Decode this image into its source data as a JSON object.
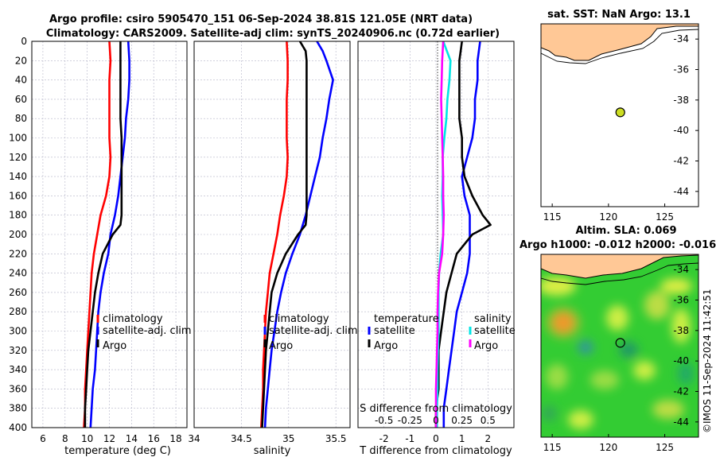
{
  "title": {
    "line1": "Argo profile: csiro 5905470_151 06-Sep-2024 38.81S 121.05E (NRT data)",
    "line2": "Climatology: CARS2009. Satellite-adj clim: synTS_20240906.nc (0.72d earlier)"
  },
  "colors": {
    "climatology": "#ff0000",
    "satellite": "#0000ff",
    "argo": "#000000",
    "sat_salinity": "#00e5e5",
    "argo_salinity": "#ff00ff",
    "land": "#ffc896",
    "sea": "#33cc33"
  },
  "chart_data": [
    {
      "type": "line",
      "name": "temperature-profile",
      "xlabel": "temperature (deg C)",
      "xlim": [
        5,
        19
      ],
      "xticks": [
        "6",
        "8",
        "10",
        "12",
        "14",
        "16",
        "18"
      ],
      "xtick_values": [
        6,
        8,
        10,
        12,
        14,
        16,
        18
      ],
      "ylim": [
        0,
        400
      ],
      "yticks": [
        "0",
        "20",
        "40",
        "60",
        "80",
        "100",
        "120",
        "140",
        "160",
        "180",
        "200",
        "220",
        "240",
        "260",
        "280",
        "300",
        "320",
        "340",
        "360",
        "380",
        "400"
      ],
      "legend": [
        "climatology",
        "satellite-adj. clim",
        "Argo"
      ],
      "series": [
        {
          "name": "climatology",
          "color_key": "climatology",
          "depth": [
            0,
            20,
            40,
            60,
            80,
            100,
            120,
            140,
            160,
            180,
            200,
            220,
            240,
            260,
            280,
            300,
            320,
            340,
            360,
            380,
            400
          ],
          "values": [
            12.0,
            12.1,
            12.0,
            12.0,
            12.0,
            12.0,
            12.1,
            12.0,
            11.7,
            11.2,
            10.9,
            10.6,
            10.4,
            10.3,
            10.2,
            10.1,
            10.0,
            9.9,
            9.8,
            9.8,
            9.7
          ]
        },
        {
          "name": "satellite-adj. clim",
          "color_key": "satellite",
          "depth": [
            0,
            20,
            40,
            60,
            80,
            100,
            120,
            140,
            160,
            180,
            200,
            220,
            240,
            260,
            280,
            300,
            320,
            340,
            360,
            380,
            400
          ],
          "values": [
            13.7,
            13.8,
            13.8,
            13.7,
            13.5,
            13.4,
            13.2,
            13.0,
            12.8,
            12.5,
            12.1,
            11.9,
            11.5,
            11.2,
            11.0,
            10.9,
            10.8,
            10.7,
            10.5,
            10.4,
            10.3
          ]
        },
        {
          "name": "Argo",
          "color_key": "argo",
          "depth": [
            0,
            20,
            40,
            60,
            80,
            100,
            120,
            140,
            160,
            180,
            190,
            200,
            220,
            240,
            260,
            280,
            300,
            320,
            340,
            360,
            380,
            400
          ],
          "values": [
            13.0,
            13.0,
            13.0,
            13.0,
            13.0,
            13.1,
            13.1,
            13.1,
            13.1,
            13.1,
            13.0,
            12.3,
            11.4,
            11.0,
            10.7,
            10.5,
            10.3,
            10.1,
            10.0,
            9.9,
            9.8,
            9.8
          ]
        }
      ]
    },
    {
      "type": "line",
      "name": "salinity-profile",
      "xlabel": "salinity",
      "xlim": [
        34,
        35.65
      ],
      "xticks": [
        "34",
        "34.5",
        "35",
        "35.5"
      ],
      "xtick_values": [
        34,
        34.5,
        35,
        35.5
      ],
      "ylim": [
        0,
        400
      ],
      "legend": [
        "climatology",
        "satellite-adj. clim",
        "Argo"
      ],
      "series": [
        {
          "name": "climatology",
          "color_key": "climatology",
          "depth": [
            0,
            20,
            40,
            60,
            80,
            100,
            120,
            140,
            160,
            180,
            200,
            220,
            240,
            260,
            280,
            300,
            320,
            340,
            360,
            380,
            400
          ],
          "values": [
            34.98,
            34.99,
            34.99,
            34.98,
            34.98,
            34.98,
            34.99,
            34.98,
            34.95,
            34.91,
            34.88,
            34.84,
            34.8,
            34.78,
            34.76,
            34.75,
            34.74,
            34.73,
            34.73,
            34.72,
            34.71
          ]
        },
        {
          "name": "satellite-adj. clim",
          "color_key": "satellite",
          "depth": [
            0,
            10,
            20,
            40,
            60,
            80,
            100,
            120,
            140,
            160,
            180,
            200,
            220,
            240,
            260,
            280,
            300,
            320,
            340,
            360,
            380,
            400
          ],
          "values": [
            35.3,
            35.36,
            35.4,
            35.47,
            35.43,
            35.4,
            35.36,
            35.33,
            35.28,
            35.23,
            35.18,
            35.12,
            35.04,
            34.97,
            34.92,
            34.88,
            34.85,
            34.82,
            34.8,
            34.78,
            34.76,
            34.75
          ]
        },
        {
          "name": "Argo",
          "color_key": "argo",
          "depth": [
            0,
            10,
            20,
            40,
            60,
            80,
            100,
            120,
            140,
            160,
            180,
            190,
            200,
            220,
            240,
            260,
            280,
            300,
            320,
            340,
            360,
            380,
            400
          ],
          "values": [
            35.12,
            35.18,
            35.19,
            35.19,
            35.19,
            35.19,
            35.19,
            35.19,
            35.19,
            35.19,
            35.19,
            35.18,
            35.1,
            34.97,
            34.88,
            34.82,
            34.8,
            34.78,
            34.76,
            34.75,
            34.74,
            34.73,
            34.72
          ]
        }
      ]
    },
    {
      "type": "line",
      "name": "difference-profile",
      "xlabel": "T difference from climatology",
      "xlabel_top": "S difference from climatology",
      "xlim": [
        -3,
        3
      ],
      "xticks": [
        "-2",
        "-1",
        "0",
        "1",
        "2"
      ],
      "xtick_values": [
        -2,
        -1,
        0,
        1,
        2
      ],
      "xticks_top": [
        "-0.5",
        "-0.25",
        "0",
        "0.25",
        "0.5"
      ],
      "xtick_top_values": [
        -0.5,
        -0.25,
        0,
        0.25,
        0.5
      ],
      "legend_left_title": "temperature",
      "legend_right_title": "salinity",
      "legend_left": [
        "satellite",
        "Argo"
      ],
      "legend_right": [
        "satellite",
        "Argo"
      ],
      "series": [
        {
          "name": "T satellite",
          "color_key": "satellite",
          "depth": [
            0,
            20,
            40,
            60,
            80,
            100,
            120,
            140,
            160,
            180,
            200,
            220,
            240,
            260,
            280,
            300,
            320,
            340,
            360,
            380,
            400
          ],
          "values": [
            1.7,
            1.6,
            1.6,
            1.5,
            1.5,
            1.4,
            1.2,
            1.0,
            1.1,
            1.3,
            1.3,
            1.3,
            1.2,
            1.0,
            0.8,
            0.7,
            0.6,
            0.5,
            0.4,
            0.3,
            0.3
          ]
        },
        {
          "name": "T Argo",
          "color_key": "argo",
          "depth": [
            0,
            20,
            40,
            60,
            80,
            100,
            120,
            140,
            160,
            180,
            190,
            200,
            220,
            240,
            260,
            280,
            300,
            320,
            340,
            360,
            380,
            400
          ],
          "values": [
            1.0,
            0.9,
            0.9,
            0.9,
            0.9,
            1.0,
            1.0,
            1.1,
            1.4,
            1.8,
            2.1,
            1.4,
            0.8,
            0.6,
            0.4,
            0.3,
            0.2,
            0.1,
            0.1,
            0.1,
            0.0,
            0.0
          ]
        },
        {
          "name": "S satellite",
          "color_key": "sat_salinity",
          "depth": [
            0,
            20,
            40,
            60,
            80,
            100,
            120,
            140,
            160,
            180,
            200,
            220,
            240,
            260,
            280,
            300,
            320,
            340,
            360,
            380,
            400
          ],
          "values": [
            0.14,
            0.28,
            0.26,
            0.22,
            0.2,
            0.16,
            0.13,
            0.13,
            0.12,
            0.13,
            0.14,
            0.09,
            0.06,
            0.05,
            0.05,
            0.05,
            0.04,
            0.03,
            0.03,
            0.02,
            0.02
          ]
        },
        {
          "name": "S Argo",
          "color_key": "argo_salinity",
          "depth": [
            0,
            20,
            40,
            60,
            80,
            100,
            120,
            140,
            160,
            180,
            200,
            220,
            240,
            260,
            280,
            300,
            320,
            340,
            360,
            380,
            400
          ],
          "values": [
            0.14,
            0.12,
            0.11,
            0.1,
            0.11,
            0.12,
            0.13,
            0.14,
            0.14,
            0.15,
            0.14,
            0.12,
            0.06,
            0.04,
            0.03,
            0.03,
            0.02,
            0.01,
            0.0,
            0.0,
            0.0
          ]
        }
      ]
    },
    {
      "type": "heatmap",
      "name": "sst-map",
      "title": "sat. SST: NaN Argo: 13.1",
      "xlim": [
        114,
        128
      ],
      "ylim": [
        -45,
        -33
      ],
      "xticks": [
        "115",
        "120",
        "125"
      ],
      "xtick_values": [
        115,
        120,
        125
      ],
      "yticks": [
        "-34",
        "-36",
        "-38",
        "-40",
        "-42",
        "-44"
      ],
      "ytick_values": [
        -34,
        -36,
        -38,
        -40,
        -42,
        -44
      ],
      "argo_position": {
        "lon": 121.05,
        "lat": -38.81
      }
    },
    {
      "type": "heatmap",
      "name": "sla-map",
      "title": "Altim. SLA: 0.069",
      "subtitle": "Argo h1000: -0.012 h2000: -0.016",
      "xlim": [
        114,
        128
      ],
      "ylim": [
        -45,
        -33
      ],
      "xticks": [
        "115",
        "120",
        "125"
      ],
      "xtick_values": [
        115,
        120,
        125
      ],
      "yticks": [
        "-34",
        "-36",
        "-38",
        "-40",
        "-42",
        "-44"
      ],
      "ytick_values": [
        -34,
        -36,
        -38,
        -40,
        -42,
        -44
      ],
      "argo_position": {
        "lon": 121.05,
        "lat": -38.81
      }
    }
  ],
  "watermark": "©IMOS 11-Sep-2024 11:42:51"
}
